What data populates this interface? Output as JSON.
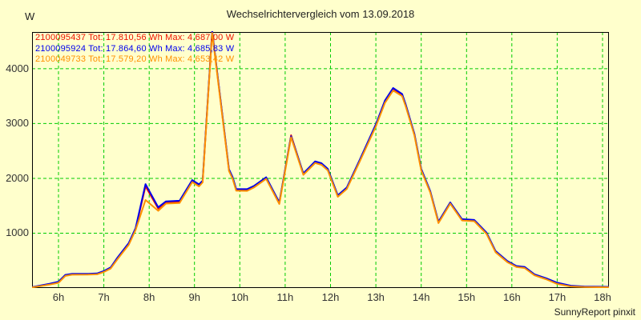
{
  "header": {
    "title": "Wechselrichtervergleich vom 13.09.2018"
  },
  "footer": {
    "credit": "SunnyReport pinxit"
  },
  "chart_data": {
    "type": "line",
    "title": "Wechselrichtervergleich vom 13.09.2018",
    "y_unit": "W",
    "xlabel": "",
    "ylabel": "W",
    "grid": true,
    "grid_style": "dashed",
    "colors": {
      "background": "#ffffcc",
      "grid": "#00cc00",
      "border": "#000000",
      "tick_text": "#333333"
    },
    "xlim_hours": [
      5.417,
      18.141
    ],
    "ylim": [
      0,
      4670
    ],
    "y_ticks": [
      1000,
      2000,
      3000,
      4000
    ],
    "x_ticks": [
      {
        "h": 6,
        "label": "6h"
      },
      {
        "h": 7,
        "label": "7h"
      },
      {
        "h": 8,
        "label": "8h"
      },
      {
        "h": 9,
        "label": "9h"
      },
      {
        "h": 10,
        "label": "10h"
      },
      {
        "h": 11,
        "label": "11h"
      },
      {
        "h": 12,
        "label": "12h"
      },
      {
        "h": 13,
        "label": "13h"
      },
      {
        "h": 14,
        "label": "14h"
      },
      {
        "h": 15,
        "label": "15h"
      },
      {
        "h": 16,
        "label": "16h"
      },
      {
        "h": 17,
        "label": "17h"
      },
      {
        "h": 18,
        "label": "18h"
      }
    ],
    "legend": {
      "position": "top-left",
      "template": "{name} Tot: {tot} Wh Max: {max} W"
    },
    "series": [
      {
        "name": "2100095437",
        "color": "#ee1100",
        "total_wh": "17.810,56",
        "max_w": "4.687,00"
      },
      {
        "name": "2100095924",
        "color": "#0000ee",
        "total_wh": "17.864,60",
        "max_w": "4.685,83"
      },
      {
        "name": "2100049733",
        "color": "#ff9000",
        "total_wh": "17.579,20",
        "max_w": "4.653,42"
      }
    ],
    "points_format": [
      "time_h",
      "w_2100095437",
      "w_2100095924",
      "w_2100049733"
    ],
    "points": [
      [
        5.42,
        15,
        18,
        12
      ],
      [
        5.6,
        40,
        45,
        35
      ],
      [
        5.8,
        70,
        78,
        62
      ],
      [
        6.0,
        105,
        115,
        95
      ],
      [
        6.15,
        230,
        240,
        220
      ],
      [
        6.3,
        250,
        258,
        242
      ],
      [
        6.65,
        252,
        260,
        244
      ],
      [
        6.85,
        258,
        266,
        250
      ],
      [
        7.0,
        300,
        310,
        292
      ],
      [
        7.15,
        365,
        375,
        355
      ],
      [
        7.3,
        540,
        555,
        525
      ],
      [
        7.55,
        805,
        822,
        788
      ],
      [
        7.7,
        1075,
        1092,
        1058
      ],
      [
        7.92,
        1855,
        1895,
        1605
      ],
      [
        8.2,
        1448,
        1472,
        1408
      ],
      [
        8.37,
        1560,
        1580,
        1540
      ],
      [
        8.67,
        1572,
        1592,
        1552
      ],
      [
        8.95,
        1950,
        1968,
        1932
      ],
      [
        9.1,
        1872,
        1890,
        1854
      ],
      [
        9.18,
        1942,
        1958,
        1926
      ],
      [
        9.39,
        4687,
        4685.8,
        4653.4
      ],
      [
        9.76,
        2150,
        2166,
        2134
      ],
      [
        9.84,
        2008,
        2024,
        1992
      ],
      [
        9.92,
        1790,
        1806,
        1774
      ],
      [
        10.16,
        1788,
        1804,
        1772
      ],
      [
        10.32,
        1852,
        1866,
        1838
      ],
      [
        10.58,
        2005,
        2020,
        1990
      ],
      [
        10.87,
        1548,
        1562,
        1532
      ],
      [
        11.13,
        2788,
        2770,
        2750
      ],
      [
        11.4,
        2078,
        2092,
        2064
      ],
      [
        11.66,
        2295,
        2310,
        2280
      ],
      [
        11.8,
        2262,
        2276,
        2248
      ],
      [
        11.94,
        2160,
        2174,
        2146
      ],
      [
        12.16,
        1678,
        1692,
        1664
      ],
      [
        12.36,
        1822,
        1836,
        1808
      ],
      [
        12.64,
        2315,
        2330,
        2300
      ],
      [
        13.0,
        2968,
        2988,
        2948
      ],
      [
        13.2,
        3398,
        3420,
        3376
      ],
      [
        13.38,
        3625,
        3648,
        3602
      ],
      [
        13.58,
        3520,
        3540,
        3500
      ],
      [
        13.66,
        3330,
        3348,
        3312
      ],
      [
        13.85,
        2800,
        2815,
        2785
      ],
      [
        14.0,
        2160,
        2174,
        2146
      ],
      [
        14.2,
        1755,
        1768,
        1742
      ],
      [
        14.38,
        1196,
        1210,
        1184
      ],
      [
        14.64,
        1550,
        1562,
        1538
      ],
      [
        14.9,
        1244,
        1256,
        1232
      ],
      [
        15.17,
        1230,
        1242,
        1218
      ],
      [
        15.44,
        1000,
        1012,
        988
      ],
      [
        15.64,
        662,
        674,
        652
      ],
      [
        15.9,
        482,
        492,
        472
      ],
      [
        16.1,
        392,
        402,
        382
      ],
      [
        16.28,
        375,
        385,
        365
      ],
      [
        16.5,
        240,
        250,
        230
      ],
      [
        16.75,
        170,
        180,
        160
      ],
      [
        17.0,
        85,
        97,
        75
      ],
      [
        17.3,
        34,
        42,
        27
      ],
      [
        17.6,
        22,
        28,
        17
      ],
      [
        18.0,
        18,
        23,
        14
      ],
      [
        18.14,
        16,
        21,
        12
      ]
    ]
  }
}
